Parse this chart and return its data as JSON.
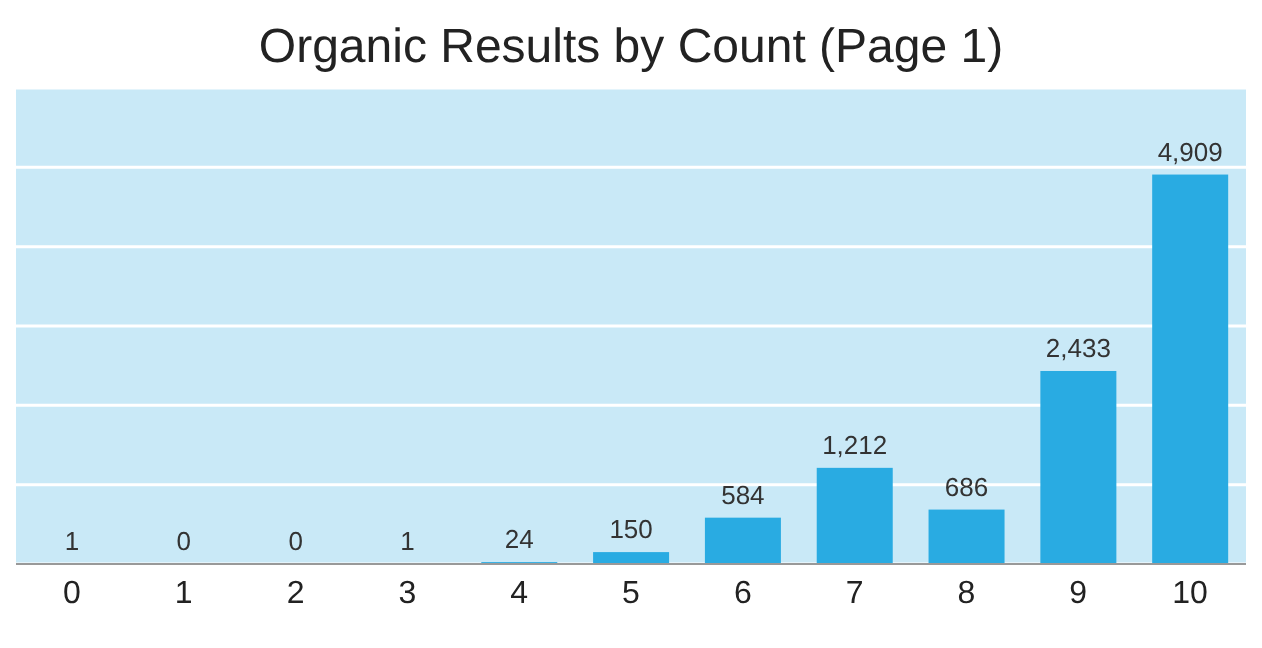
{
  "chart_data": {
    "type": "bar",
    "title": "Organic Results by Count (Page 1)",
    "categories": [
      "0",
      "1",
      "2",
      "3",
      "4",
      "5",
      "6",
      "7",
      "8",
      "9",
      "10"
    ],
    "values": [
      1,
      0,
      0,
      1,
      24,
      150,
      584,
      1212,
      686,
      2433,
      4909
    ],
    "color": "#29abe2",
    "ylim": [
      0,
      6000
    ],
    "yticks": [
      {
        "value": 0,
        "label": null
      },
      {
        "value": 1000,
        "label": null
      },
      {
        "value": 2000,
        "label": null
      },
      {
        "value": 3000,
        "label": null
      },
      {
        "value": 4000,
        "label": null
      },
      {
        "value": 5000,
        "label": null
      },
      {
        "value": 6000,
        "label": null
      }
    ],
    "value_labels": [
      "1",
      "0",
      "0",
      "1",
      "24",
      "150",
      "584",
      "1,212",
      "686",
      "2,433",
      "4,909"
    ],
    "tick_labels": "x",
    "grid": "y"
  }
}
